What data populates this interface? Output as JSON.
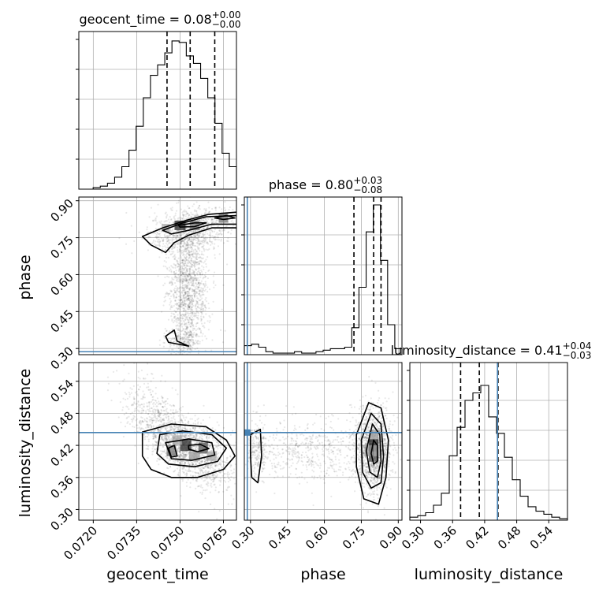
{
  "chart_data": {
    "type": "corner",
    "parameters": [
      {
        "name": "geocent_time",
        "axis_label": "geocent_time",
        "title": {
          "prefix": "geocent_time = ",
          "median": "0.08",
          "plus": "+0.00",
          "minus": "−0.00"
        },
        "range": [
          0.0716,
          0.07705
        ],
        "ticks": [
          0.072,
          0.0735,
          0.075,
          0.0765
        ],
        "tick_labels": [
          "0.0720",
          "0.0735",
          "0.0750",
          "0.0765"
        ],
        "quantiles": [
          0.07465,
          0.07545,
          0.0763
        ],
        "truth": null
      },
      {
        "name": "phase",
        "axis_label": "phase",
        "title": {
          "prefix": "phase = ",
          "median": "0.80",
          "plus": "+0.03",
          "minus": "−0.08"
        },
        "range": [
          0.275,
          0.915
        ],
        "ticks": [
          0.3,
          0.45,
          0.6,
          0.75,
          0.9
        ],
        "tick_labels": [
          "0.30",
          "0.45",
          "0.60",
          "0.75",
          "0.90"
        ],
        "quantiles": [
          0.72,
          0.8,
          0.83
        ],
        "truth": 0.287
      },
      {
        "name": "luminosity_distance",
        "axis_label": "luminosity_distance",
        "title": {
          "prefix": "luminosity_distance = ",
          "median": "0.41",
          "plus": "+0.04",
          "minus": "−0.03"
        },
        "range": [
          0.28,
          0.575
        ],
        "ticks": [
          0.3,
          0.36,
          0.42,
          0.48,
          0.54
        ],
        "tick_labels": [
          "0.30",
          "0.36",
          "0.42",
          "0.48",
          "0.54"
        ],
        "quantiles": [
          0.375,
          0.41,
          0.445
        ],
        "truth": 0.444
      }
    ],
    "histograms": [
      [
        0,
        0,
        0.01,
        0.02,
        0.04,
        0.08,
        0.15,
        0.26,
        0.42,
        0.61,
        0.76,
        0.83,
        0.91,
        0.99,
        0.98,
        0.89,
        0.84,
        0.74,
        0.61,
        0.44,
        0.24,
        0.15
      ],
      [
        0.06,
        0.07,
        0.05,
        0.02,
        0.01,
        0.01,
        0.01,
        0.02,
        0.01,
        0.01,
        0.02,
        0.03,
        0.04,
        0.04,
        0.05,
        0.18,
        0.45,
        0.82,
        1.0,
        0.63,
        0.2,
        0.04
      ],
      [
        0.02,
        0.03,
        0.05,
        0.1,
        0.18,
        0.43,
        0.62,
        0.8,
        0.85,
        0.9,
        0.69,
        0.58,
        0.42,
        0.27,
        0.16,
        0.09,
        0.06,
        0.04,
        0.02,
        0.01
      ]
    ],
    "grid": true,
    "contour_color": "#000000",
    "truth_color": "#4682b4"
  }
}
